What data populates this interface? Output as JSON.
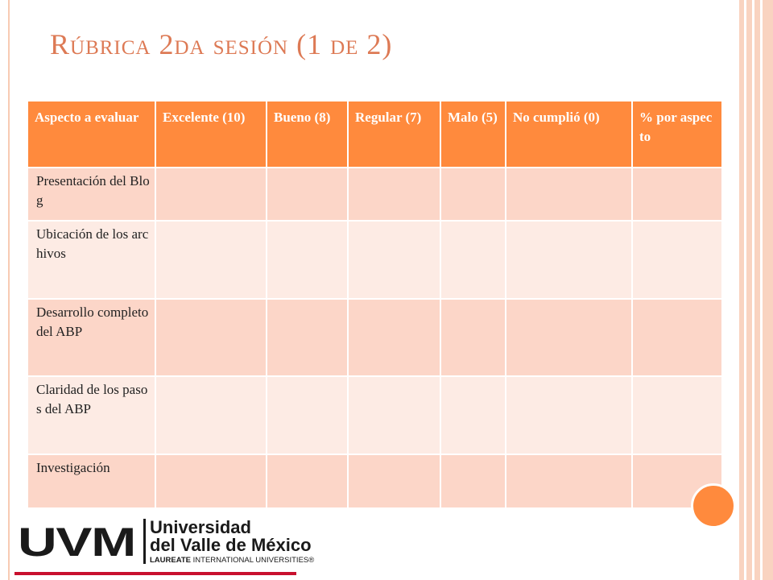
{
  "slide": {
    "title": "Rúbrica 2da sesión (1 de 2)"
  },
  "table": {
    "headers": [
      "Aspecto a evaluar",
      "Excelente (10)",
      "Bueno (8)",
      "Regular (7)",
      "Malo (5)",
      "No cumplió (0)",
      "% por aspecto"
    ],
    "rows": [
      [
        "Presentación del Blog",
        "",
        "",
        "",
        "",
        "",
        ""
      ],
      [
        "Ubicación de los archivos",
        "",
        "",
        "",
        "",
        "",
        ""
      ],
      [
        "Desarrollo completo del ABP",
        "",
        "",
        "",
        "",
        "",
        ""
      ],
      [
        "Claridad de los pasos del ABP",
        "",
        "",
        "",
        "",
        "",
        ""
      ],
      [
        "Investigación",
        "",
        "",
        "",
        "",
        "",
        ""
      ]
    ]
  },
  "logo": {
    "mark": "UVM",
    "name_line1": "Universidad",
    "name_line2": "del Valle de México",
    "tagline_bold": "LAUREATE",
    "tagline_rest": " INTERNATIONAL UNIVERSITIES®"
  },
  "colors": {
    "accent": "#ff8a3d",
    "title": "#dd7a55",
    "row_odd": "#fcd6c8",
    "row_even": "#fdebe4",
    "brand_red": "#c8102e"
  }
}
